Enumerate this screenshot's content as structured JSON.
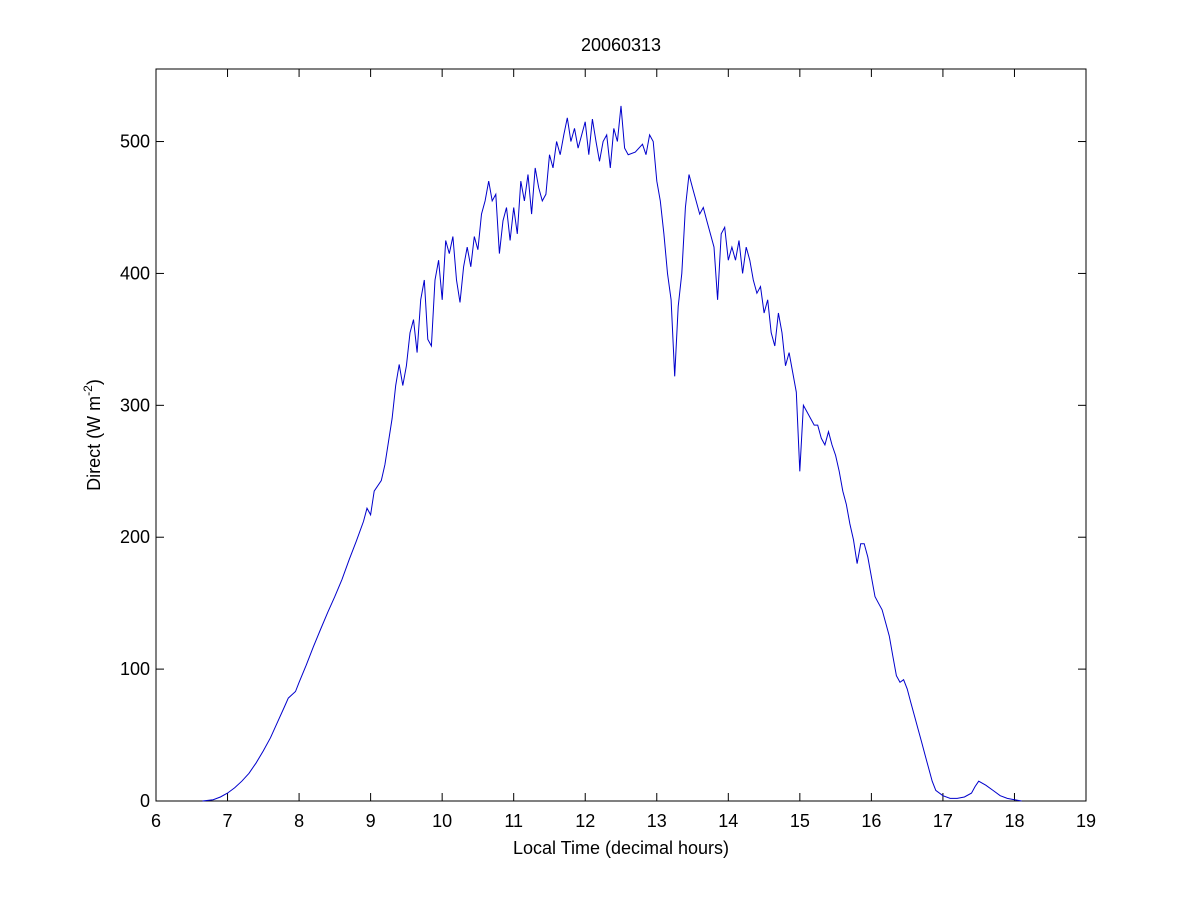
{
  "chart_data": {
    "type": "line",
    "title": "20060313",
    "xlabel": "Local Time (decimal hours)",
    "ylabel": "Direct (W m",
    "ylabel_superscript": "-2",
    "ylabel_close": ")",
    "xlim": [
      6,
      19
    ],
    "ylim": [
      0,
      555
    ],
    "xticks": [
      6,
      7,
      8,
      9,
      10,
      11,
      12,
      13,
      14,
      15,
      16,
      17,
      18,
      19
    ],
    "yticks": [
      0,
      100,
      200,
      300,
      400,
      500
    ],
    "grid": false,
    "series": [
      {
        "color": "#0000cc",
        "points": [
          [
            6.65,
            0
          ],
          [
            6.8,
            1
          ],
          [
            6.9,
            3
          ],
          [
            7.0,
            6
          ],
          [
            7.1,
            10
          ],
          [
            7.2,
            15
          ],
          [
            7.3,
            21
          ],
          [
            7.4,
            29
          ],
          [
            7.5,
            38
          ],
          [
            7.6,
            48
          ],
          [
            7.7,
            60
          ],
          [
            7.8,
            72
          ],
          [
            7.85,
            78
          ],
          [
            7.95,
            83
          ],
          [
            8.0,
            90
          ],
          [
            8.1,
            103
          ],
          [
            8.2,
            117
          ],
          [
            8.3,
            130
          ],
          [
            8.4,
            143
          ],
          [
            8.5,
            155
          ],
          [
            8.6,
            168
          ],
          [
            8.7,
            183
          ],
          [
            8.8,
            197
          ],
          [
            8.9,
            212
          ],
          [
            8.95,
            222
          ],
          [
            9.0,
            217
          ],
          [
            9.05,
            235
          ],
          [
            9.15,
            243
          ],
          [
            9.2,
            255
          ],
          [
            9.3,
            290
          ],
          [
            9.35,
            315
          ],
          [
            9.4,
            331
          ],
          [
            9.45,
            315
          ],
          [
            9.5,
            330
          ],
          [
            9.55,
            355
          ],
          [
            9.6,
            365
          ],
          [
            9.65,
            340
          ],
          [
            9.7,
            380
          ],
          [
            9.75,
            395
          ],
          [
            9.8,
            350
          ],
          [
            9.85,
            345
          ],
          [
            9.9,
            395
          ],
          [
            9.95,
            410
          ],
          [
            10.0,
            380
          ],
          [
            10.05,
            425
          ],
          [
            10.1,
            415
          ],
          [
            10.15,
            428
          ],
          [
            10.2,
            395
          ],
          [
            10.25,
            378
          ],
          [
            10.3,
            405
          ],
          [
            10.35,
            420
          ],
          [
            10.4,
            405
          ],
          [
            10.45,
            428
          ],
          [
            10.5,
            418
          ],
          [
            10.55,
            445
          ],
          [
            10.6,
            455
          ],
          [
            10.65,
            470
          ],
          [
            10.7,
            455
          ],
          [
            10.75,
            460
          ],
          [
            10.8,
            415
          ],
          [
            10.85,
            440
          ],
          [
            10.9,
            450
          ],
          [
            10.95,
            425
          ],
          [
            11.0,
            450
          ],
          [
            11.05,
            430
          ],
          [
            11.1,
            470
          ],
          [
            11.15,
            455
          ],
          [
            11.2,
            475
          ],
          [
            11.25,
            445
          ],
          [
            11.3,
            480
          ],
          [
            11.35,
            465
          ],
          [
            11.4,
            455
          ],
          [
            11.45,
            460
          ],
          [
            11.5,
            490
          ],
          [
            11.55,
            480
          ],
          [
            11.6,
            500
          ],
          [
            11.65,
            490
          ],
          [
            11.7,
            505
          ],
          [
            11.75,
            518
          ],
          [
            11.8,
            500
          ],
          [
            11.85,
            510
          ],
          [
            11.9,
            495
          ],
          [
            11.95,
            505
          ],
          [
            12.0,
            515
          ],
          [
            12.05,
            490
          ],
          [
            12.1,
            517
          ],
          [
            12.15,
            500
          ],
          [
            12.2,
            485
          ],
          [
            12.25,
            500
          ],
          [
            12.3,
            505
          ],
          [
            12.35,
            480
          ],
          [
            12.4,
            510
          ],
          [
            12.45,
            500
          ],
          [
            12.5,
            527
          ],
          [
            12.55,
            495
          ],
          [
            12.6,
            490
          ],
          [
            12.7,
            492
          ],
          [
            12.8,
            498
          ],
          [
            12.85,
            490
          ],
          [
            12.9,
            505
          ],
          [
            12.95,
            500
          ],
          [
            13.0,
            470
          ],
          [
            13.05,
            455
          ],
          [
            13.1,
            430
          ],
          [
            13.15,
            400
          ],
          [
            13.2,
            380
          ],
          [
            13.25,
            322
          ],
          [
            13.3,
            375
          ],
          [
            13.35,
            400
          ],
          [
            13.4,
            450
          ],
          [
            13.45,
            475
          ],
          [
            13.5,
            465
          ],
          [
            13.55,
            455
          ],
          [
            13.6,
            445
          ],
          [
            13.65,
            450
          ],
          [
            13.7,
            440
          ],
          [
            13.75,
            430
          ],
          [
            13.8,
            420
          ],
          [
            13.85,
            380
          ],
          [
            13.9,
            430
          ],
          [
            13.95,
            435
          ],
          [
            14.0,
            410
          ],
          [
            14.05,
            420
          ],
          [
            14.1,
            410
          ],
          [
            14.15,
            425
          ],
          [
            14.2,
            400
          ],
          [
            14.25,
            420
          ],
          [
            14.3,
            410
          ],
          [
            14.35,
            395
          ],
          [
            14.4,
            385
          ],
          [
            14.45,
            390
          ],
          [
            14.5,
            370
          ],
          [
            14.55,
            380
          ],
          [
            14.6,
            355
          ],
          [
            14.65,
            345
          ],
          [
            14.7,
            370
          ],
          [
            14.75,
            355
          ],
          [
            14.8,
            330
          ],
          [
            14.85,
            340
          ],
          [
            14.9,
            325
          ],
          [
            14.95,
            310
          ],
          [
            15.0,
            250
          ],
          [
            15.05,
            300
          ],
          [
            15.1,
            295
          ],
          [
            15.15,
            290
          ],
          [
            15.2,
            285
          ],
          [
            15.25,
            285
          ],
          [
            15.3,
            275
          ],
          [
            15.35,
            270
          ],
          [
            15.4,
            280
          ],
          [
            15.45,
            270
          ],
          [
            15.5,
            262
          ],
          [
            15.55,
            250
          ],
          [
            15.6,
            235
          ],
          [
            15.65,
            225
          ],
          [
            15.7,
            210
          ],
          [
            15.75,
            198
          ],
          [
            15.8,
            180
          ],
          [
            15.85,
            195
          ],
          [
            15.9,
            195
          ],
          [
            15.95,
            185
          ],
          [
            16.0,
            170
          ],
          [
            16.05,
            155
          ],
          [
            16.1,
            150
          ],
          [
            16.15,
            145
          ],
          [
            16.2,
            135
          ],
          [
            16.25,
            125
          ],
          [
            16.3,
            110
          ],
          [
            16.35,
            95
          ],
          [
            16.4,
            90
          ],
          [
            16.45,
            92
          ],
          [
            16.5,
            85
          ],
          [
            16.55,
            75
          ],
          [
            16.6,
            65
          ],
          [
            16.65,
            55
          ],
          [
            16.7,
            45
          ],
          [
            16.75,
            35
          ],
          [
            16.8,
            25
          ],
          [
            16.85,
            15
          ],
          [
            16.9,
            8
          ],
          [
            17.0,
            4
          ],
          [
            17.1,
            2
          ],
          [
            17.2,
            2
          ],
          [
            17.3,
            3
          ],
          [
            17.4,
            6
          ],
          [
            17.45,
            11
          ],
          [
            17.5,
            15
          ],
          [
            17.6,
            12
          ],
          [
            17.7,
            8
          ],
          [
            17.8,
            4
          ],
          [
            17.9,
            2
          ],
          [
            18.0,
            1
          ],
          [
            18.1,
            0
          ]
        ]
      }
    ]
  }
}
